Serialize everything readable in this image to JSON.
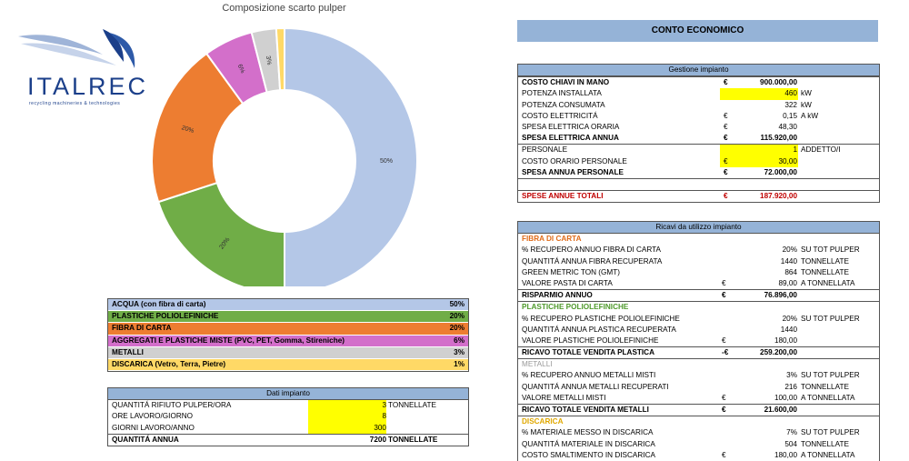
{
  "logo": {
    "brand": "ITALREC",
    "tagline": "recycling machineries & technologies"
  },
  "chart_data": {
    "type": "pie",
    "title": "Composizione scarto pulper",
    "categories": [
      "ACQUA (con fibra di carta)",
      "PLASTICHE POLIOLEFINICHE",
      "FIBRA DI CARTA",
      "AGGREGATI E PLASTICHE MISTE (PVC, PET, Gomma, Stireniche)",
      "METALLI",
      "DISCARICA (Vetro, Terra, Pietre)"
    ],
    "values": [
      50,
      20,
      20,
      6,
      3,
      1
    ],
    "labels": [
      "50%",
      "20%",
      "20%",
      "6%",
      "3%",
      ""
    ],
    "colors": [
      "#b4c7e7",
      "#70ad47",
      "#ed7d31",
      "#d36fca",
      "#d0d0d0",
      "#ffd966"
    ],
    "donut": true
  },
  "legend_table": {
    "rows": [
      {
        "label": "ACQUA (con fibra di carta)",
        "value": "50%",
        "color": "#b4c7e7"
      },
      {
        "label": "PLASTICHE POLIOLEFINICHE",
        "value": "20%",
        "color": "#70ad47"
      },
      {
        "label": "FIBRA DI CARTA",
        "value": "20%",
        "color": "#ed7d31"
      },
      {
        "label": "AGGREGATI E PLASTICHE MISTE (PVC, PET, Gomma, Stireniche)",
        "value": "6%",
        "color": "#d36fca"
      },
      {
        "label": "METALLI",
        "value": "3%",
        "color": "#d0d0d0"
      },
      {
        "label": "DISCARICA (Vetro, Terra, Pietre)",
        "value": "1%",
        "color": "#ffd966"
      }
    ]
  },
  "dati_impianto": {
    "header": "Dati impianto",
    "rows": [
      {
        "label": "QUANTITÁ RIFIUTO PULPER/ORA",
        "value": "3",
        "unit": "TONNELLATE"
      },
      {
        "label": "ORE LAVORO/GIORNO",
        "value": "8",
        "unit": ""
      },
      {
        "label": "GIORNI LAVORO/ANNO",
        "value": "300",
        "unit": ""
      },
      {
        "label": "QUANTITÁ ANNUA",
        "value": "7200",
        "unit": "TONNELLATE"
      }
    ]
  },
  "conto_economico": {
    "title": "CONTO ECONOMICO",
    "gestione": {
      "header": "Gestione impianto",
      "rows": [
        {
          "label": "COSTO CHIAVI IN MANO",
          "cur": "€",
          "value": "900.000,00",
          "unit": ""
        },
        {
          "label": "POTENZA INSTALLATA",
          "cur": "",
          "value": "460",
          "unit": "kW"
        },
        {
          "label": "POTENZA CONSUMATA",
          "cur": "",
          "value": "322",
          "unit": "kW"
        },
        {
          "label": "COSTO ELETTRICITÁ",
          "cur": "€",
          "value": "0,15",
          "unit": "A kW"
        },
        {
          "label": "SPESA ELETTRICA ORARIA",
          "cur": "€",
          "value": "48,30",
          "unit": ""
        },
        {
          "label": "SPESA ELETTRICA ANNUA",
          "cur": "€",
          "value": "115.920,00",
          "unit": ""
        },
        {
          "label": "PERSONALE",
          "cur": "",
          "value": "1",
          "unit": "ADDETTO/I"
        },
        {
          "label": "COSTO ORARIO PERSONALE",
          "cur": "€",
          "value": "30,00",
          "unit": ""
        },
        {
          "label": "SPESA ANNUA PERSONALE",
          "cur": "€",
          "value": "72.000,00",
          "unit": ""
        }
      ],
      "totale": {
        "label": "SPESE ANNUE TOTALI",
        "cur": "€",
        "value": "187.920,00"
      }
    },
    "ricavi": {
      "header": "Ricavi da utilizzo impianto",
      "fibra": {
        "title": "FIBRA DI CARTA",
        "rows": [
          {
            "label": "% RECUPERO ANNUO FIBRA DI CARTA",
            "cur": "",
            "value": "20%",
            "unit": "SU TOT PULPER"
          },
          {
            "label": "QUANTITÁ ANNUA FIBRA RECUPERATA",
            "cur": "",
            "value": "1440",
            "unit": "TONNELLATE"
          },
          {
            "label": "GREEN METRIC TON (GMT)",
            "cur": "",
            "value": "864",
            "unit": "TONNELLATE"
          },
          {
            "label": "VALORE PASTA DI CARTA",
            "cur": "€",
            "value": "89,00",
            "unit": "A TONNELLATA"
          },
          {
            "label": "RISPARMIO ANNUO",
            "cur": "€",
            "value": "76.896,00",
            "unit": ""
          }
        ]
      },
      "plastiche": {
        "title": "PLASTICHE POLIOLEFINICHE",
        "rows": [
          {
            "label": "% RECUPERO PLASTICHE POLIOLEFINICHE",
            "cur": "",
            "value": "20%",
            "unit": "SU TOT PULPER"
          },
          {
            "label": "QUANTITÁ ANNUA PLASTICA RECUPERATA",
            "cur": "",
            "value": "1440",
            "unit": ""
          },
          {
            "label": "VALORE PLASTICHE POLIOLEFINICHE",
            "cur": "€",
            "value": "180,00",
            "unit": ""
          },
          {
            "label": "RICAVO TOTALE VENDITA PLASTICA",
            "cur": "-€",
            "value": "259.200,00",
            "unit": ""
          }
        ]
      },
      "metalli": {
        "title": "METALLI",
        "rows": [
          {
            "label": "% RECUPERO ANNUO METALLI MISTI",
            "cur": "",
            "value": "3%",
            "unit": "SU TOT PULPER"
          },
          {
            "label": "QUANTITÁ ANNUA METALLI RECUPERATI",
            "cur": "",
            "value": "216",
            "unit": "TONNELLATE"
          },
          {
            "label": "VALORE METALLI MISTI",
            "cur": "€",
            "value": "100,00",
            "unit": "A TONNELLATA"
          },
          {
            "label": "RICAVO TOTALE VENDITA METALLI",
            "cur": "€",
            "value": "21.600,00",
            "unit": ""
          }
        ]
      },
      "discarica": {
        "title": "DISCARICA",
        "rows": [
          {
            "label": "% MATERIALE MESSO IN DISCARICA",
            "cur": "",
            "value": "7%",
            "unit": "SU TOT PULPER"
          },
          {
            "label": "QUANTITÁ MATERIALE IN DISCARICA",
            "cur": "",
            "value": "504",
            "unit": "TONNELLATE"
          },
          {
            "label": "COSTO SMALTIMENTO IN DISCARICA",
            "cur": "€",
            "value": "180,00",
            "unit": "A TONNELLATA"
          }
        ]
      }
    }
  }
}
